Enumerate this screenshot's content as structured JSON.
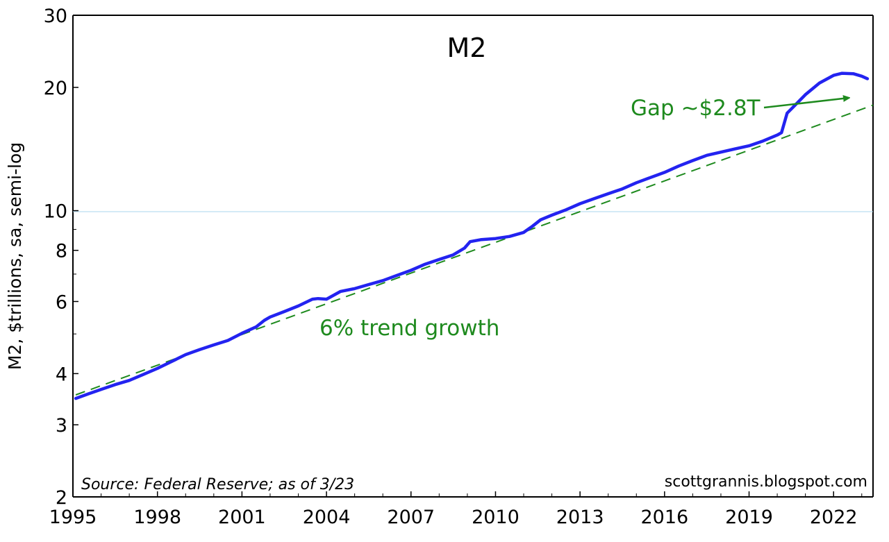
{
  "chart_data": {
    "type": "line",
    "title": "M2",
    "ylabel": "M2, $trillions, sa, semi-log",
    "xlabel": "",
    "y_scale": "log",
    "ylim": [
      2,
      30
    ],
    "xlim": [
      1995,
      2023.4
    ],
    "grid": "horizontal line at 10 only",
    "x_ticks": [
      "1995",
      "1998",
      "2001",
      "2004",
      "2007",
      "2010",
      "2013",
      "2016",
      "2019",
      "2022"
    ],
    "y_ticks": [
      "2",
      "3",
      "4",
      "6",
      "8",
      "10",
      "20",
      "30"
    ],
    "series": [
      {
        "color": "#2323f0",
        "x": [
          1995.1,
          1995.5,
          1996.0,
          1996.5,
          1997.0,
          1997.5,
          1998.0,
          1998.5,
          1999.0,
          1999.5,
          2000.0,
          2000.5,
          2001.0,
          2001.5,
          2001.8,
          2002.0,
          2002.5,
          2003.0,
          2003.5,
          2003.7,
          2004.0,
          2004.5,
          2005.0,
          2005.5,
          2006.0,
          2006.5,
          2007.0,
          2007.5,
          2008.0,
          2008.5,
          2008.9,
          2009.1,
          2009.5,
          2010.0,
          2010.5,
          2011.0,
          2011.3,
          2011.6,
          2012.0,
          2012.5,
          2013.0,
          2013.5,
          2014.0,
          2014.5,
          2015.0,
          2015.5,
          2016.0,
          2016.5,
          2017.0,
          2017.5,
          2018.0,
          2018.5,
          2019.0,
          2019.5,
          2020.0,
          2020.15,
          2020.35,
          2020.6,
          2021.0,
          2021.5,
          2022.0,
          2022.3,
          2022.7,
          2023.0,
          2023.2
        ],
        "y": [
          3.48,
          3.56,
          3.66,
          3.76,
          3.85,
          3.98,
          4.12,
          4.28,
          4.45,
          4.58,
          4.7,
          4.82,
          5.02,
          5.2,
          5.4,
          5.5,
          5.67,
          5.85,
          6.08,
          6.1,
          6.08,
          6.35,
          6.45,
          6.6,
          6.75,
          6.95,
          7.15,
          7.4,
          7.6,
          7.8,
          8.1,
          8.4,
          8.5,
          8.55,
          8.65,
          8.85,
          9.15,
          9.5,
          9.75,
          10.05,
          10.4,
          10.7,
          11.0,
          11.3,
          11.7,
          12.05,
          12.4,
          12.85,
          13.25,
          13.65,
          13.9,
          14.15,
          14.4,
          14.8,
          15.3,
          15.5,
          17.3,
          18.0,
          19.2,
          20.5,
          21.4,
          21.65,
          21.6,
          21.3,
          21.0
        ]
      },
      {
        "color": "#1e8a1e",
        "style": "dashed",
        "x": [
          1995.1,
          2023.4
        ],
        "y": [
          3.55,
          18.1
        ]
      }
    ],
    "annotations": [
      {
        "text": "Gap ~$2.8T",
        "color": "#1e8a1e",
        "arrow": true
      },
      {
        "text": "6% trend growth",
        "color": "#1e8a1e"
      }
    ],
    "source": "Source: Federal Reserve; as of 3/23",
    "credit": "scottgrannis.blogspot.com"
  }
}
